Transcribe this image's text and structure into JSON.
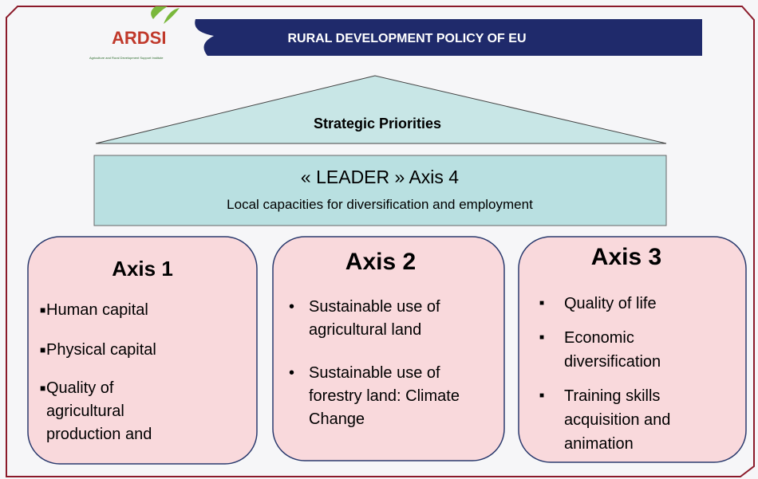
{
  "header": {
    "logo": "ARDSI",
    "logo_tagline": "Agriculture and Rural Development Support Institute",
    "title": "RURAL DEVELOPMENT POLICY OF EU"
  },
  "roof": {
    "label": "Strategic Priorities"
  },
  "leader": {
    "title": "« LEADER » Axis 4",
    "subtitle": "Local capacities for diversification and employment"
  },
  "axes": [
    {
      "title": "Axis 1",
      "items": [
        "Human capital",
        "Physical capital",
        "Quality of agricultural production and"
      ]
    },
    {
      "title": "Axis 2",
      "items": [
        "Sustainable use of agricultural land",
        "Sustainable use of forestry land: Climate Change"
      ]
    },
    {
      "title": "Axis 3",
      "items": [
        "Quality of life",
        "Economic diversification",
        "Training skills acquisition and animation"
      ]
    }
  ]
}
